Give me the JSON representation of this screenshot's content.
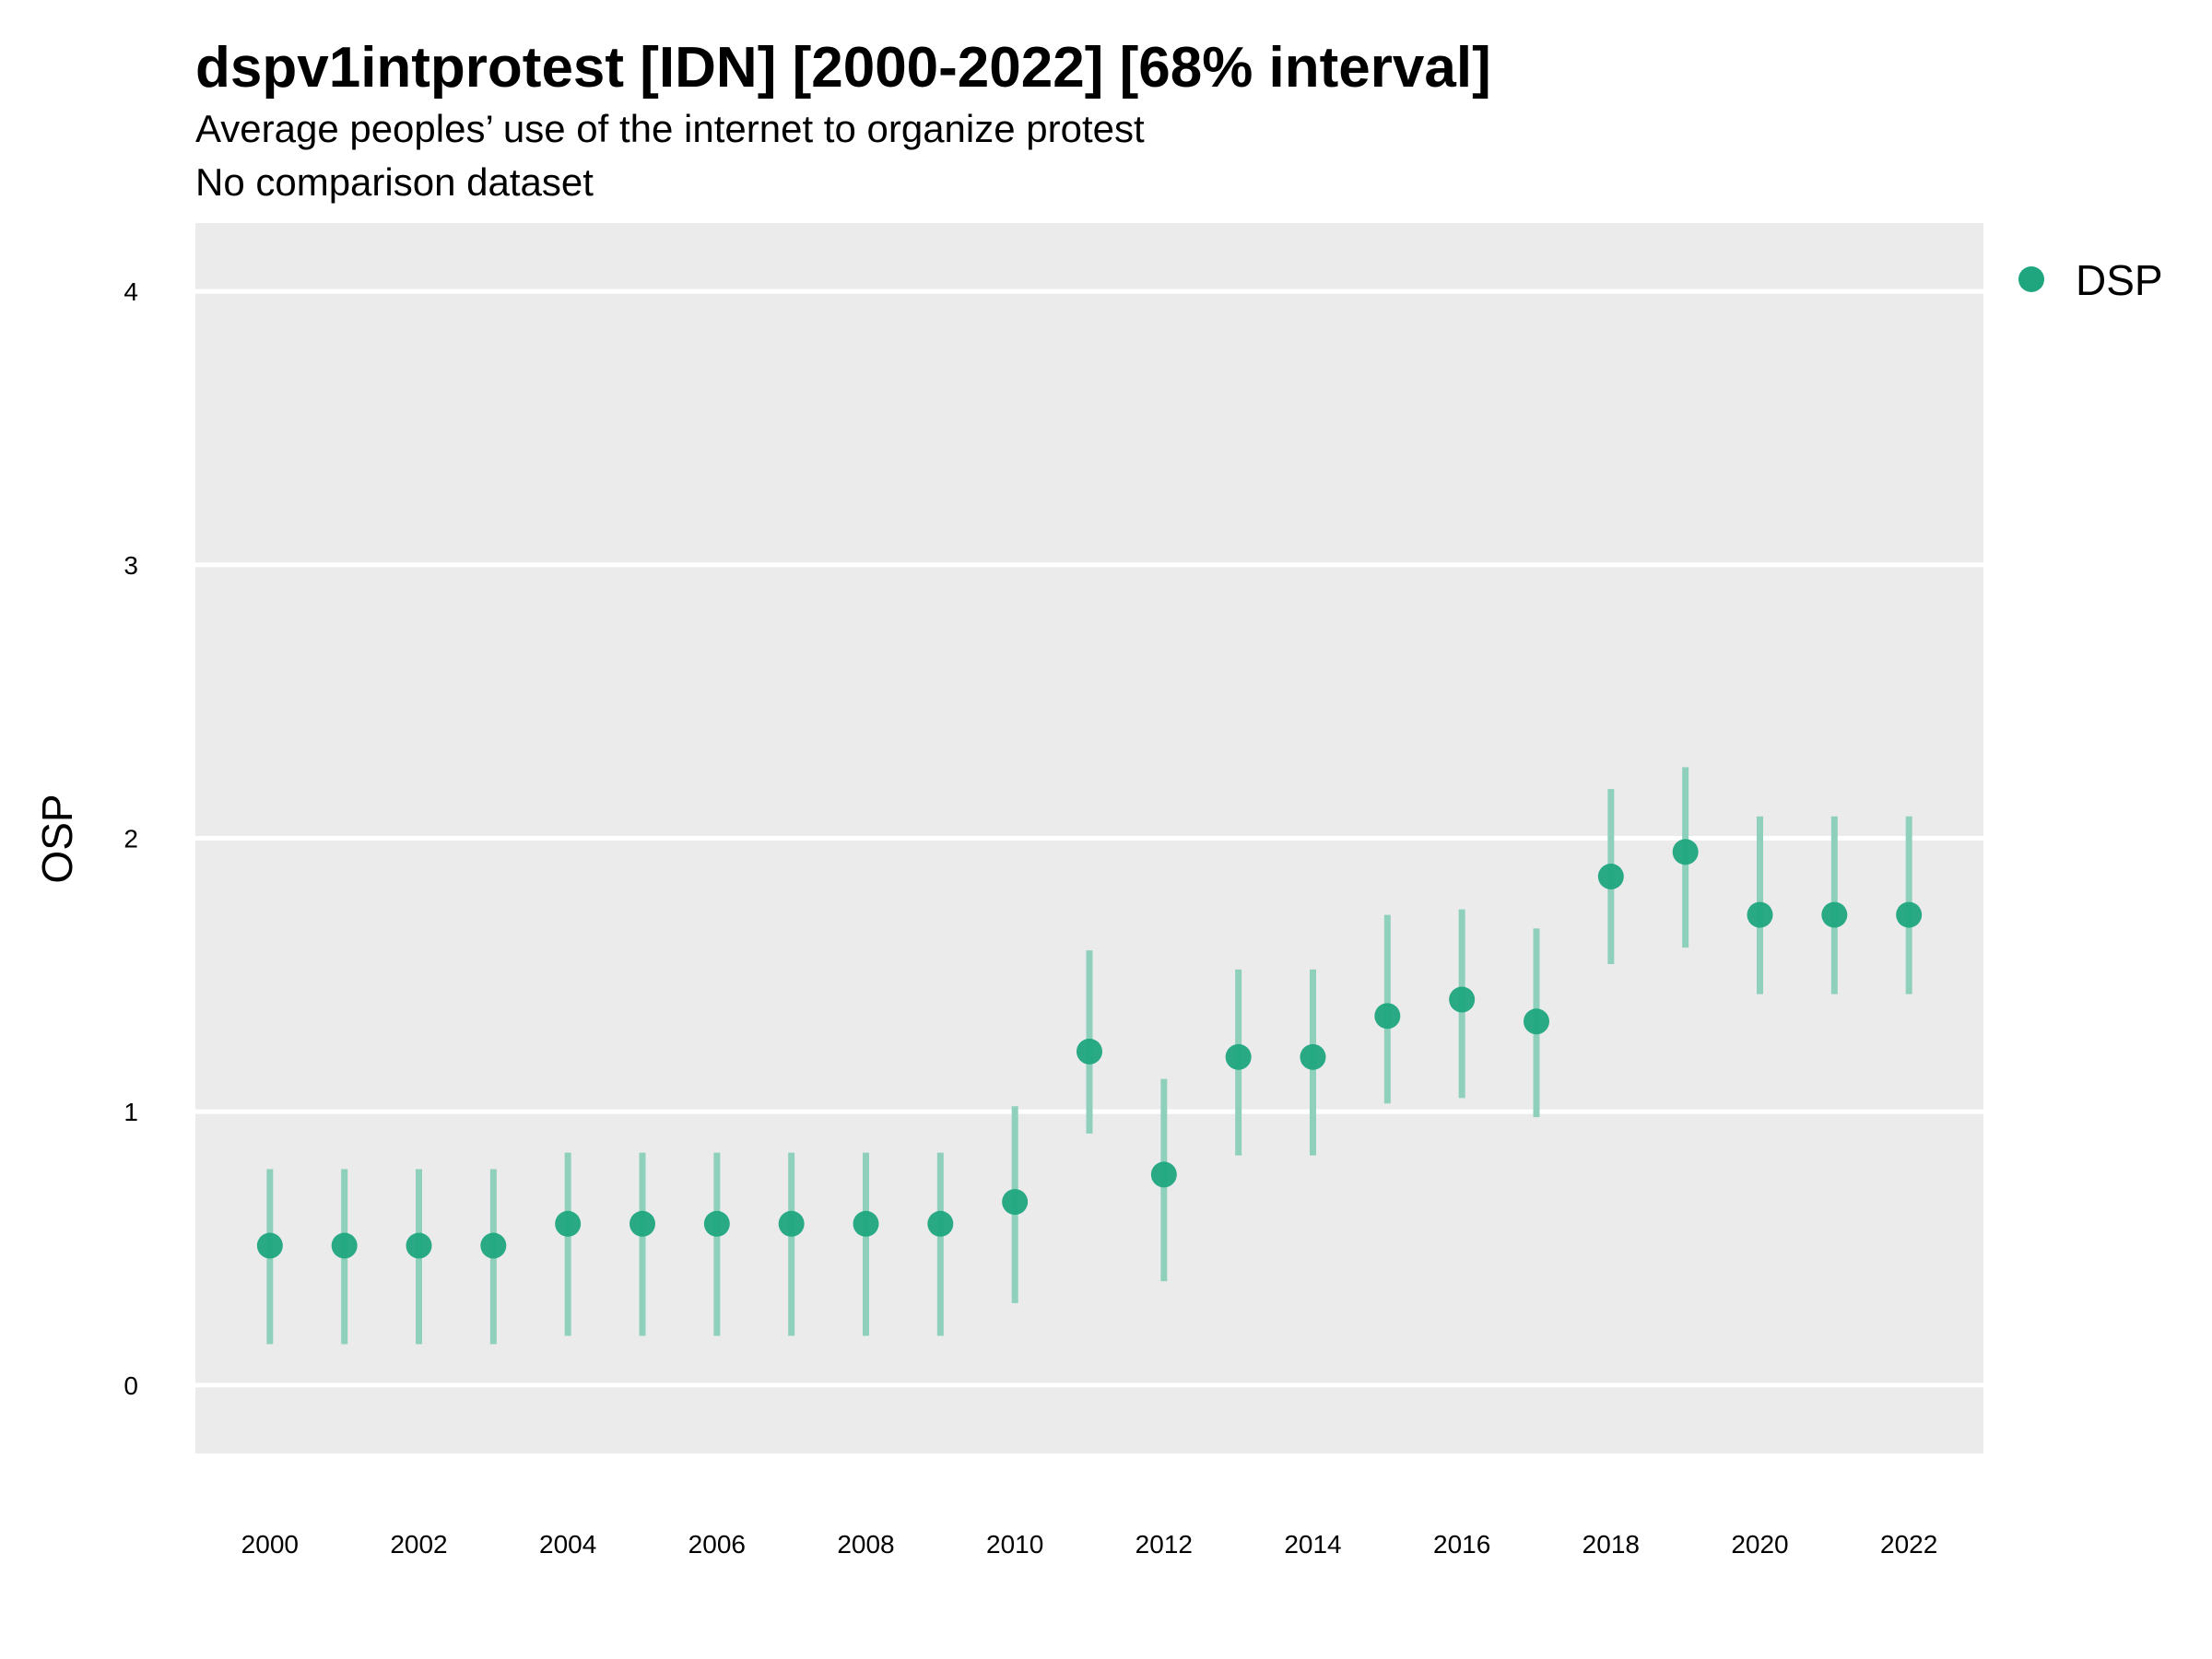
{
  "chart_data": {
    "type": "scatter",
    "title": "dspv1intprotest [IDN] [2000-2022] [68% interval]",
    "subtitle": "Average peoples’ use of the internet to organize protest",
    "subtitle2": "No comparison dataset",
    "xlabel": "",
    "ylabel": "OSP",
    "xlim": [
      1999,
      2023
    ],
    "ylim": [
      -0.25,
      4.25
    ],
    "y_ticks": [
      0,
      1,
      2,
      3,
      4
    ],
    "x_ticks": [
      2000,
      2002,
      2004,
      2006,
      2008,
      2010,
      2012,
      2014,
      2016,
      2018,
      2020,
      2022
    ],
    "grid": true,
    "legend_position": "top-right",
    "colors": {
      "point": "#1fa67f",
      "interval": "#8fd0bc",
      "panel": "#ebebeb",
      "grid": "#ffffff"
    },
    "series": [
      {
        "name": "DSP",
        "x": [
          2000,
          2001,
          2002,
          2003,
          2004,
          2005,
          2006,
          2007,
          2008,
          2009,
          2010,
          2011,
          2012,
          2013,
          2014,
          2015,
          2016,
          2017,
          2018,
          2019,
          2020,
          2021,
          2022
        ],
        "y": [
          0.51,
          0.51,
          0.51,
          0.51,
          0.59,
          0.59,
          0.59,
          0.59,
          0.59,
          0.59,
          0.67,
          1.22,
          0.77,
          1.2,
          1.2,
          1.35,
          1.41,
          1.33,
          1.86,
          1.95,
          1.72,
          1.72,
          1.72
        ],
        "lower": [
          0.15,
          0.15,
          0.15,
          0.15,
          0.18,
          0.18,
          0.18,
          0.18,
          0.18,
          0.18,
          0.3,
          0.92,
          0.38,
          0.84,
          0.84,
          1.03,
          1.05,
          0.98,
          1.54,
          1.6,
          1.43,
          1.43,
          1.43
        ],
        "upper": [
          0.79,
          0.79,
          0.79,
          0.79,
          0.85,
          0.85,
          0.85,
          0.85,
          0.85,
          0.85,
          1.02,
          1.59,
          1.12,
          1.52,
          1.52,
          1.72,
          1.74,
          1.67,
          2.18,
          2.26,
          2.08,
          2.08,
          2.08
        ]
      }
    ]
  }
}
